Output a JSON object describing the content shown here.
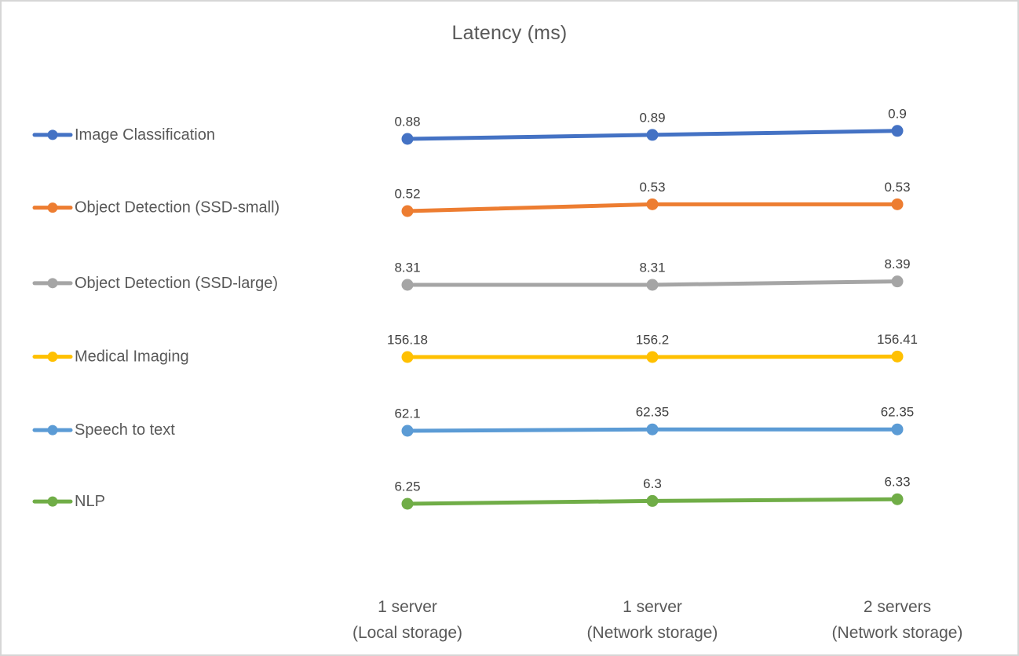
{
  "chart_data": {
    "type": "line",
    "title": "Latency (ms)",
    "categories": [
      "1 server (Local storage)",
      "1 server (Network storage)",
      "2 servers (Network storage)"
    ],
    "series": [
      {
        "name": "Image Classification",
        "color": "#4472C4",
        "values": [
          0.88,
          0.89,
          0.9
        ]
      },
      {
        "name": "Object Detection (SSD-small)",
        "color": "#ED7D31",
        "values": [
          0.52,
          0.53,
          0.53
        ]
      },
      {
        "name": "Object Detection (SSD-large)",
        "color": "#A5A5A5",
        "values": [
          8.31,
          8.31,
          8.39
        ]
      },
      {
        "name": "Medical Imaging",
        "color": "#FFC000",
        "values": [
          156.18,
          156.2,
          156.41
        ]
      },
      {
        "name": "Speech to text",
        "color": "#5B9BD5",
        "values": [
          62.1,
          62.35,
          62.35
        ]
      },
      {
        "name": "NLP",
        "color": "#70AD47",
        "values": [
          6.25,
          6.3,
          6.33
        ]
      }
    ],
    "data_labels": true,
    "legend_position": "left",
    "axes": "hidden",
    "note_layout": "each series drawn on its own horizontal band; values shown as data labels above points"
  },
  "colors": {
    "title_text": "#595959",
    "legend_text": "#595959",
    "data_label_text": "#404040",
    "axis_label_text": "#595959",
    "background": "#ffffff",
    "border": "#d6d6d6"
  }
}
